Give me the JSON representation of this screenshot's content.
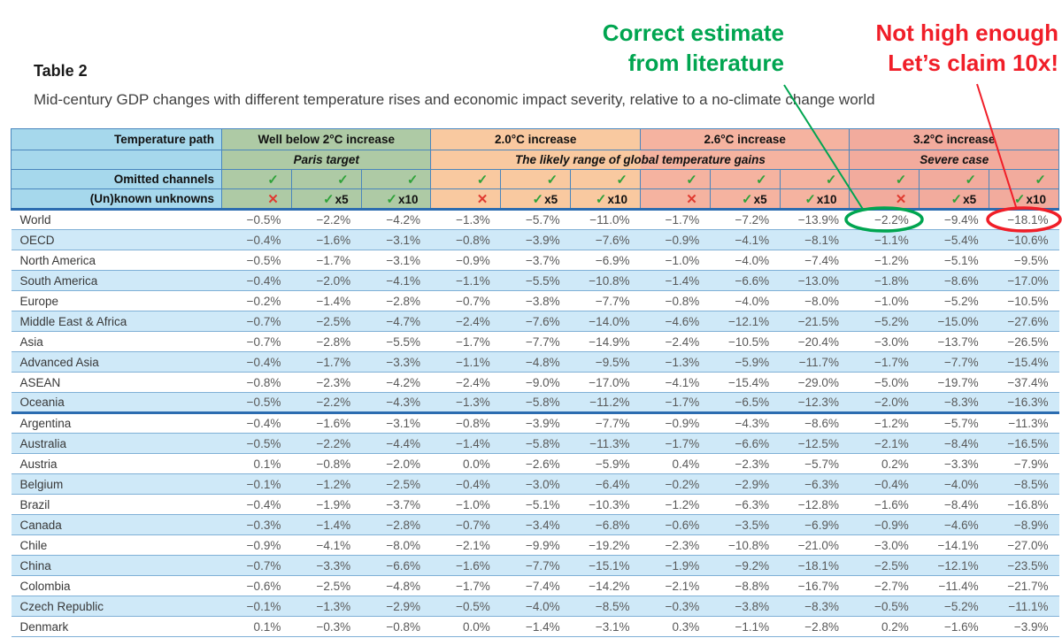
{
  "page": {
    "title": "Table 2",
    "caption": "Mid-century GDP changes with different temperature rises and economic impact severity, relative to a no-climate change world"
  },
  "annotations": {
    "green_note": {
      "lines": [
        "Correct estimate",
        "from literature"
      ],
      "color": "#00A550",
      "target_value": "−2.2%"
    },
    "red_note": {
      "lines": [
        "Not high enough",
        "Let’s claim 10x!"
      ],
      "color": "#F01E28",
      "target_value": "−18.1%"
    }
  },
  "colors": {
    "header_blue": "#a6d8ec",
    "stripe_blue": "#cfe9f8",
    "border_mid": "#4a86bd",
    "border_light": "#7fb0d6",
    "border_dark": "#2b6cb0",
    "check_green": "#2fa23a",
    "cross_red": "#e03a30",
    "value_text": "#595959",
    "name_text": "#383838",
    "note_green": "#00A550",
    "note_red": "#F01E28"
  },
  "chart_data": {
    "type": "table",
    "title": "Table 2",
    "corner_label": "Temperature path",
    "omitted_channels_label": "Omitted channels",
    "unknown_unknowns_label": "(Un)known unknowns",
    "middle_subtitle": "The likely range of global temperature gains",
    "glyphs": {
      "check": "✓",
      "cross": "✕"
    },
    "groups": [
      {
        "title": "Well below 2°C increase",
        "subtitle": "Paris target",
        "color": "#aecaa5"
      },
      {
        "title": "2.0°C increase",
        "subtitle": "",
        "color": "#f9c9a0"
      },
      {
        "title": "2.6°C increase",
        "subtitle": "",
        "color": "#f5b3a0"
      },
      {
        "title": "3.2°C increase",
        "subtitle": "Severe case",
        "color": "#f2ab9d"
      }
    ],
    "scenarios": [
      {
        "omitted": "check",
        "unknowns": "cross",
        "mult": ""
      },
      {
        "omitted": "check",
        "unknowns": "check",
        "mult": "x5"
      },
      {
        "omitted": "check",
        "unknowns": "check",
        "mult": "x10"
      }
    ],
    "rows": [
      {
        "name": "World",
        "values": [
          "−0.5%",
          "−2.2%",
          "−4.2%",
          "−1.3%",
          "−5.7%",
          "−11.0%",
          "−1.7%",
          "−7.2%",
          "−13.9%",
          "−2.2%",
          "−9.4%",
          "−18.1%"
        ]
      },
      {
        "name": "OECD",
        "values": [
          "−0.4%",
          "−1.6%",
          "−3.1%",
          "−0.8%",
          "−3.9%",
          "−7.6%",
          "−0.9%",
          "−4.1%",
          "−8.1%",
          "−1.1%",
          "−5.4%",
          "−10.6%"
        ]
      },
      {
        "name": "North America",
        "values": [
          "−0.5%",
          "−1.7%",
          "−3.1%",
          "−0.9%",
          "−3.7%",
          "−6.9%",
          "−1.0%",
          "−4.0%",
          "−7.4%",
          "−1.2%",
          "−5.1%",
          "−9.5%"
        ]
      },
      {
        "name": "South America",
        "values": [
          "−0.4%",
          "−2.0%",
          "−4.1%",
          "−1.1%",
          "−5.5%",
          "−10.8%",
          "−1.4%",
          "−6.6%",
          "−13.0%",
          "−1.8%",
          "−8.6%",
          "−17.0%"
        ]
      },
      {
        "name": "Europe",
        "values": [
          "−0.2%",
          "−1.4%",
          "−2.8%",
          "−0.7%",
          "−3.8%",
          "−7.7%",
          "−0.8%",
          "−4.0%",
          "−8.0%",
          "−1.0%",
          "−5.2%",
          "−10.5%"
        ]
      },
      {
        "name": "Middle East & Africa",
        "values": [
          "−0.7%",
          "−2.5%",
          "−4.7%",
          "−2.4%",
          "−7.6%",
          "−14.0%",
          "−4.6%",
          "−12.1%",
          "−21.5%",
          "−5.2%",
          "−15.0%",
          "−27.6%"
        ]
      },
      {
        "name": "Asia",
        "values": [
          "−0.7%",
          "−2.8%",
          "−5.5%",
          "−1.7%",
          "−7.7%",
          "−14.9%",
          "−2.4%",
          "−10.5%",
          "−20.4%",
          "−3.0%",
          "−13.7%",
          "−26.5%"
        ]
      },
      {
        "name": "Advanced Asia",
        "values": [
          "−0.4%",
          "−1.7%",
          "−3.3%",
          "−1.1%",
          "−4.8%",
          "−9.5%",
          "−1.3%",
          "−5.9%",
          "−11.7%",
          "−1.7%",
          "−7.7%",
          "−15.4%"
        ]
      },
      {
        "name": "ASEAN",
        "values": [
          "−0.8%",
          "−2.3%",
          "−4.2%",
          "−2.4%",
          "−9.0%",
          "−17.0%",
          "−4.1%",
          "−15.4%",
          "−29.0%",
          "−5.0%",
          "−19.7%",
          "−37.4%"
        ]
      },
      {
        "name": "Oceania",
        "values": [
          "−0.5%",
          "−2.2%",
          "−4.3%",
          "−1.3%",
          "−5.8%",
          "−11.2%",
          "−1.7%",
          "−6.5%",
          "−12.3%",
          "−2.0%",
          "−8.3%",
          "−16.3%"
        ],
        "section_end": true
      },
      {
        "name": "Argentina",
        "values": [
          "−0.4%",
          "−1.6%",
          "−3.1%",
          "−0.8%",
          "−3.9%",
          "−7.7%",
          "−0.9%",
          "−4.3%",
          "−8.6%",
          "−1.2%",
          "−5.7%",
          "−11.3%"
        ]
      },
      {
        "name": "Australia",
        "values": [
          "−0.5%",
          "−2.2%",
          "−4.4%",
          "−1.4%",
          "−5.8%",
          "−11.3%",
          "−1.7%",
          "−6.6%",
          "−12.5%",
          "−2.1%",
          "−8.4%",
          "−16.5%"
        ]
      },
      {
        "name": "Austria",
        "values": [
          "0.1%",
          "−0.8%",
          "−2.0%",
          "0.0%",
          "−2.6%",
          "−5.9%",
          "0.4%",
          "−2.3%",
          "−5.7%",
          "0.2%",
          "−3.3%",
          "−7.9%"
        ]
      },
      {
        "name": "Belgium",
        "values": [
          "−0.1%",
          "−1.2%",
          "−2.5%",
          "−0.4%",
          "−3.0%",
          "−6.4%",
          "−0.2%",
          "−2.9%",
          "−6.3%",
          "−0.4%",
          "−4.0%",
          "−8.5%"
        ]
      },
      {
        "name": "Brazil",
        "values": [
          "−0.4%",
          "−1.9%",
          "−3.7%",
          "−1.0%",
          "−5.1%",
          "−10.3%",
          "−1.2%",
          "−6.3%",
          "−12.8%",
          "−1.6%",
          "−8.4%",
          "−16.8%"
        ]
      },
      {
        "name": "Canada",
        "values": [
          "−0.3%",
          "−1.4%",
          "−2.8%",
          "−0.7%",
          "−3.4%",
          "−6.8%",
          "−0.6%",
          "−3.5%",
          "−6.9%",
          "−0.9%",
          "−4.6%",
          "−8.9%"
        ]
      },
      {
        "name": "Chile",
        "values": [
          "−0.9%",
          "−4.1%",
          "−8.0%",
          "−2.1%",
          "−9.9%",
          "−19.2%",
          "−2.3%",
          "−10.8%",
          "−21.0%",
          "−3.0%",
          "−14.1%",
          "−27.0%"
        ]
      },
      {
        "name": "China",
        "values": [
          "−0.7%",
          "−3.3%",
          "−6.6%",
          "−1.6%",
          "−7.7%",
          "−15.1%",
          "−1.9%",
          "−9.2%",
          "−18.1%",
          "−2.5%",
          "−12.1%",
          "−23.5%"
        ]
      },
      {
        "name": "Colombia",
        "values": [
          "−0.6%",
          "−2.5%",
          "−4.8%",
          "−1.7%",
          "−7.4%",
          "−14.2%",
          "−2.1%",
          "−8.8%",
          "−16.7%",
          "−2.7%",
          "−11.4%",
          "−21.7%"
        ]
      },
      {
        "name": "Czech Republic",
        "values": [
          "−0.1%",
          "−1.3%",
          "−2.9%",
          "−0.5%",
          "−4.0%",
          "−8.5%",
          "−0.3%",
          "−3.8%",
          "−8.3%",
          "−0.5%",
          "−5.2%",
          "−11.1%"
        ]
      },
      {
        "name": "Denmark",
        "values": [
          "0.1%",
          "−0.3%",
          "−0.8%",
          "0.0%",
          "−1.4%",
          "−3.1%",
          "0.3%",
          "−1.1%",
          "−2.8%",
          "0.2%",
          "−1.6%",
          "−3.9%"
        ]
      }
    ],
    "highlights": [
      {
        "row": "World",
        "col_index": 9,
        "value": "−2.2%",
        "shape": "ellipse",
        "color": "#00A550"
      },
      {
        "row": "World",
        "col_index": 11,
        "value": "−18.1%",
        "shape": "ellipse",
        "color": "#F01E28"
      }
    ]
  }
}
